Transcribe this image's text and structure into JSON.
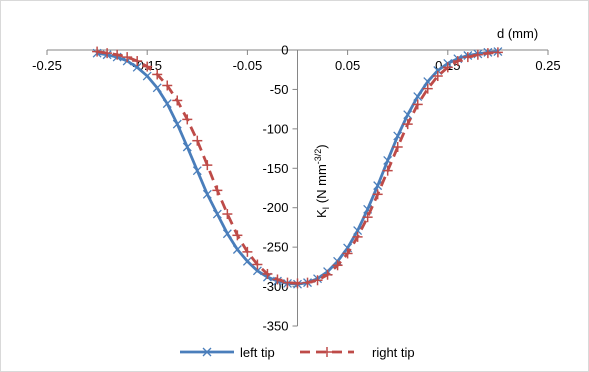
{
  "chart_data": {
    "type": "line",
    "title": "",
    "xlabel": "d (mm)",
    "ylabel_main": "K",
    "ylabel_sub": "I",
    "ylabel_unit_prefix": " (N mm",
    "ylabel_unit_sup": "-3/2",
    "ylabel_unit_suffix": ")",
    "xlim": [
      -0.25,
      0.25
    ],
    "ylim": [
      -350,
      0
    ],
    "xticks": [
      -0.25,
      -0.15,
      -0.05,
      0.05,
      0.15,
      0.25
    ],
    "xtick_labels": [
      "-0.25",
      "-0.15",
      "-0.05",
      "0.05",
      "0.15",
      "0.25"
    ],
    "yticks": [
      0,
      -50,
      -100,
      -150,
      -200,
      -250,
      -300,
      -350
    ],
    "ytick_labels": [
      "0",
      "-50",
      "-100",
      "-150",
      "-200",
      "-250",
      "-300",
      "-350"
    ],
    "grid": false,
    "legend_position": "bottom",
    "series": [
      {
        "name": "left tip",
        "color": "#4a7ebb",
        "marker": "x",
        "dash": "solid",
        "x": [
          -0.2,
          -0.19,
          -0.18,
          -0.17,
          -0.16,
          -0.15,
          -0.14,
          -0.13,
          -0.12,
          -0.11,
          -0.1,
          -0.09,
          -0.08,
          -0.07,
          -0.06,
          -0.05,
          -0.04,
          -0.03,
          -0.02,
          -0.01,
          0.0,
          0.01,
          0.02,
          0.03,
          0.04,
          0.05,
          0.06,
          0.07,
          0.08,
          0.09,
          0.1,
          0.11,
          0.12,
          0.13,
          0.14,
          0.15,
          0.16,
          0.17,
          0.18,
          0.19,
          0.2
        ],
        "y": [
          -4,
          -6,
          -9,
          -14,
          -22,
          -33,
          -48,
          -68,
          -94,
          -123,
          -153,
          -183,
          -208,
          -233,
          -253,
          -268,
          -280,
          -288,
          -293,
          -296,
          -297,
          -295,
          -290,
          -281,
          -268,
          -251,
          -229,
          -202,
          -172,
          -140,
          -109,
          -82,
          -59,
          -40,
          -26,
          -17,
          -11,
          -7,
          -5,
          -3,
          -2
        ]
      },
      {
        "name": "right tip",
        "color": "#be4b48",
        "marker": "+",
        "dash": "dashed",
        "x": [
          -0.2,
          -0.19,
          -0.18,
          -0.17,
          -0.16,
          -0.15,
          -0.14,
          -0.13,
          -0.12,
          -0.11,
          -0.1,
          -0.09,
          -0.08,
          -0.07,
          -0.06,
          -0.05,
          -0.04,
          -0.03,
          -0.02,
          -0.01,
          0.0,
          0.01,
          0.02,
          0.03,
          0.04,
          0.05,
          0.06,
          0.07,
          0.08,
          0.09,
          0.1,
          0.11,
          0.12,
          0.13,
          0.14,
          0.15,
          0.16,
          0.17,
          0.18,
          0.19,
          0.2
        ],
        "y": [
          -2,
          -4,
          -6,
          -9,
          -14,
          -21,
          -31,
          -45,
          -64,
          -88,
          -115,
          -146,
          -178,
          -208,
          -235,
          -256,
          -272,
          -284,
          -291,
          -295,
          -296,
          -295,
          -292,
          -285,
          -273,
          -258,
          -237,
          -212,
          -183,
          -153,
          -123,
          -94,
          -69,
          -49,
          -33,
          -22,
          -14,
          -9,
          -6,
          -4,
          -3
        ]
      }
    ]
  }
}
